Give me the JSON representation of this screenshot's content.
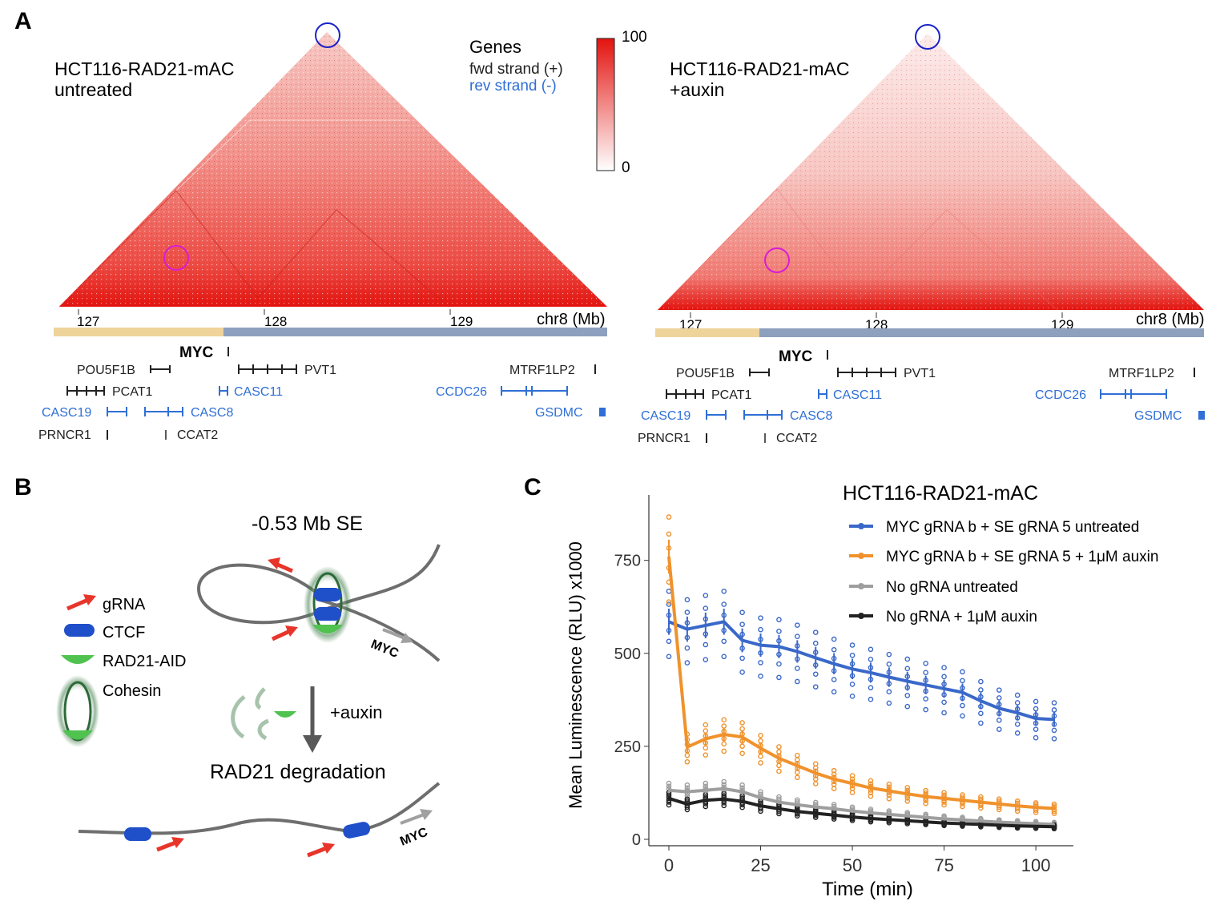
{
  "panels": {
    "a": "A",
    "b": "B",
    "c": "C"
  },
  "panel_a": {
    "left_title": [
      "HCT116-RAD21-mAC",
      "untreated"
    ],
    "right_title": [
      "HCT116-RAD21-mAC",
      "+auxin"
    ],
    "genes_legend": {
      "title": "Genes",
      "fwd": "fwd strand (+)",
      "rev": "rev strand (-)"
    },
    "colorbar": {
      "max": "100",
      "min": "0"
    },
    "axis": {
      "ticks": [
        "127",
        "128",
        "129"
      ],
      "label": "chr8 (Mb)"
    },
    "myc_label": "MYC",
    "genes": [
      {
        "name": "POU5F1B",
        "strand": "fwd"
      },
      {
        "name": "PVT1",
        "strand": "fwd"
      },
      {
        "name": "MTRF1LP2",
        "strand": "fwd"
      },
      {
        "name": "PCAT1",
        "strand": "fwd"
      },
      {
        "name": "CASC11",
        "strand": "rev"
      },
      {
        "name": "CCDC26",
        "strand": "rev"
      },
      {
        "name": "CASC19",
        "strand": "rev"
      },
      {
        "name": "CASC8",
        "strand": "rev"
      },
      {
        "name": "GSDMC",
        "strand": "rev"
      },
      {
        "name": "PRNCR1",
        "strand": "fwd"
      },
      {
        "name": "CCAT2",
        "strand": "fwd"
      }
    ],
    "colors": {
      "fwd": "#222222",
      "rev": "#2f6fd6",
      "heat": "#e8231f",
      "tad_left": "#eed39a",
      "tad_right": "#8da0be"
    }
  },
  "panel_b": {
    "legend": {
      "grna": "gRNA",
      "ctcf": "CTCF",
      "rad21": "RAD21-AID",
      "cohesin": "Cohesin"
    },
    "se_label": "-0.53 Mb SE",
    "myc": "MYC",
    "auxin": "+auxin",
    "degradation": "RAD21 degradation",
    "colors": {
      "grna": "#e8352b",
      "ctcf": "#1f4fc9",
      "rad21": "#4fc24f"
    }
  },
  "chart_data": {
    "type": "line",
    "title": "HCT116-RAD21-mAC",
    "xlabel": "Time (min)",
    "ylabel": "Mean Luminescence (RLU) x1000",
    "xlim": [
      -5,
      108
    ],
    "ylim": [
      0,
      930
    ],
    "xticks": [
      0,
      25,
      50,
      75,
      100
    ],
    "yticks": [
      0,
      250,
      500,
      750
    ],
    "x": [
      0,
      5,
      10,
      15,
      20,
      25,
      30,
      35,
      40,
      45,
      50,
      55,
      60,
      65,
      70,
      75,
      80,
      85,
      90,
      95,
      100,
      105
    ],
    "series": [
      {
        "name": "MYC gRNA b + SE gRNA 5 untreated",
        "color": "#3a68c9",
        "values": [
          585,
          565,
          575,
          585,
          535,
          522,
          518,
          505,
          488,
          472,
          458,
          448,
          436,
          425,
          415,
          405,
          395,
          372,
          352,
          340,
          325,
          322
        ]
      },
      {
        "name": "MYC gRNA b + SE gRNA 5 + 1μM auxin",
        "color": "#f0922c",
        "values": [
          760,
          248,
          270,
          282,
          275,
          245,
          218,
          198,
          178,
          162,
          150,
          138,
          130,
          122,
          115,
          110,
          105,
          100,
          95,
          90,
          86,
          83
        ]
      },
      {
        "name": "No gRNA untreated",
        "color": "#9e9e9e",
        "values": [
          132,
          128,
          132,
          136,
          128,
          112,
          100,
          93,
          87,
          82,
          76,
          71,
          67,
          63,
          59,
          55,
          52,
          49,
          46,
          44,
          42,
          40
        ]
      },
      {
        "name": "No gRNA + 1μM auxin",
        "color": "#222222",
        "values": [
          110,
          95,
          105,
          108,
          102,
          90,
          82,
          75,
          70,
          65,
          60,
          56,
          53,
          50,
          47,
          44,
          42,
          40,
          38,
          36,
          35,
          34
        ]
      }
    ]
  }
}
